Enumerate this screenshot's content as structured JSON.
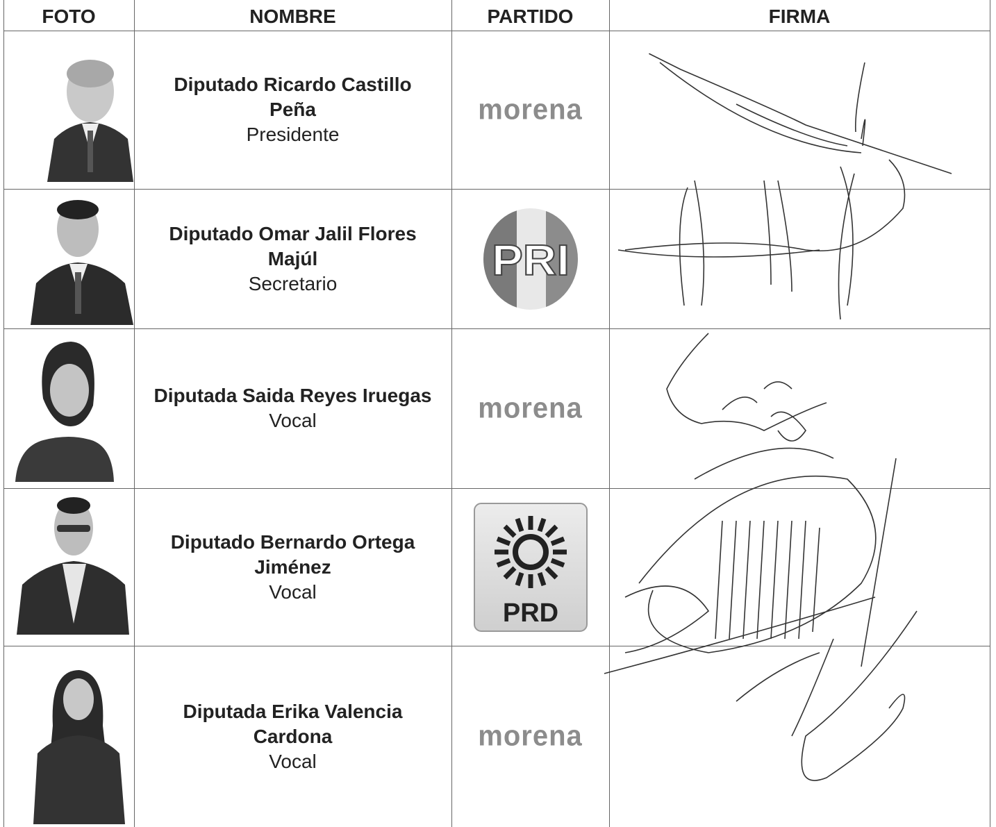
{
  "header": {
    "columns": [
      "FOTO",
      "NOMBRE",
      "PARTIDO",
      "FIRMA"
    ]
  },
  "table": {
    "rows": [
      {
        "name": "Diputado Ricardo Castillo Peña",
        "role": "Presidente",
        "party": "morena"
      },
      {
        "name": "Diputado Omar Jalil Flores Majúl",
        "role": "Secretario",
        "party": "PRI"
      },
      {
        "name": "Diputada Saida Reyes Iruegas",
        "role": "Vocal",
        "party": "morena"
      },
      {
        "name": "Diputado Bernardo Ortega Jiménez",
        "role": "Vocal",
        "party": "PRD"
      },
      {
        "name": "Diputada Erika Valencia Cardona",
        "role": "Vocal",
        "party": "morena"
      }
    ]
  }
}
